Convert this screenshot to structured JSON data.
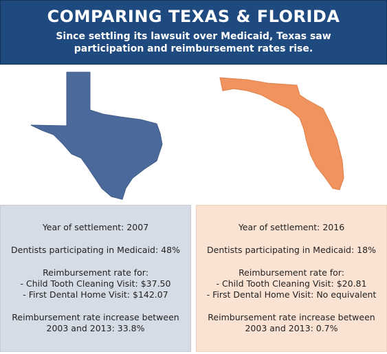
{
  "header": {
    "title": "COMPARING TEXAS & FLORIDA",
    "subtitle": "Since settling its lawsuit over Medicaid, Texas saw participation and reimbursement rates rise."
  },
  "panels": [
    {
      "settlement": "Year of settlement: 2007",
      "participation": "Dentists participating in Medicaid: 48%",
      "rate_heading": "Reimbursement rate for:",
      "rate_items": [
        "- Child Tooth Cleaning Visit: $37.50",
        "- First Dental Home Visit: $142.07"
      ],
      "increase": "Reimbursement rate increase between 2003 and 2013: 33.8%"
    },
    {
      "settlement": "Year of settlement: 2016",
      "participation": "Dentists participating in Medicaid: 18%",
      "rate_heading": "Reimbursement rate for:",
      "rate_items": [
        "- Child Tooth Cleaning Visit: $20.81",
        "- First Dental Home Visit: No equivalent"
      ],
      "increase": "Reimbursement rate increase between 2003 and 2013: 0.7%"
    }
  ]
}
